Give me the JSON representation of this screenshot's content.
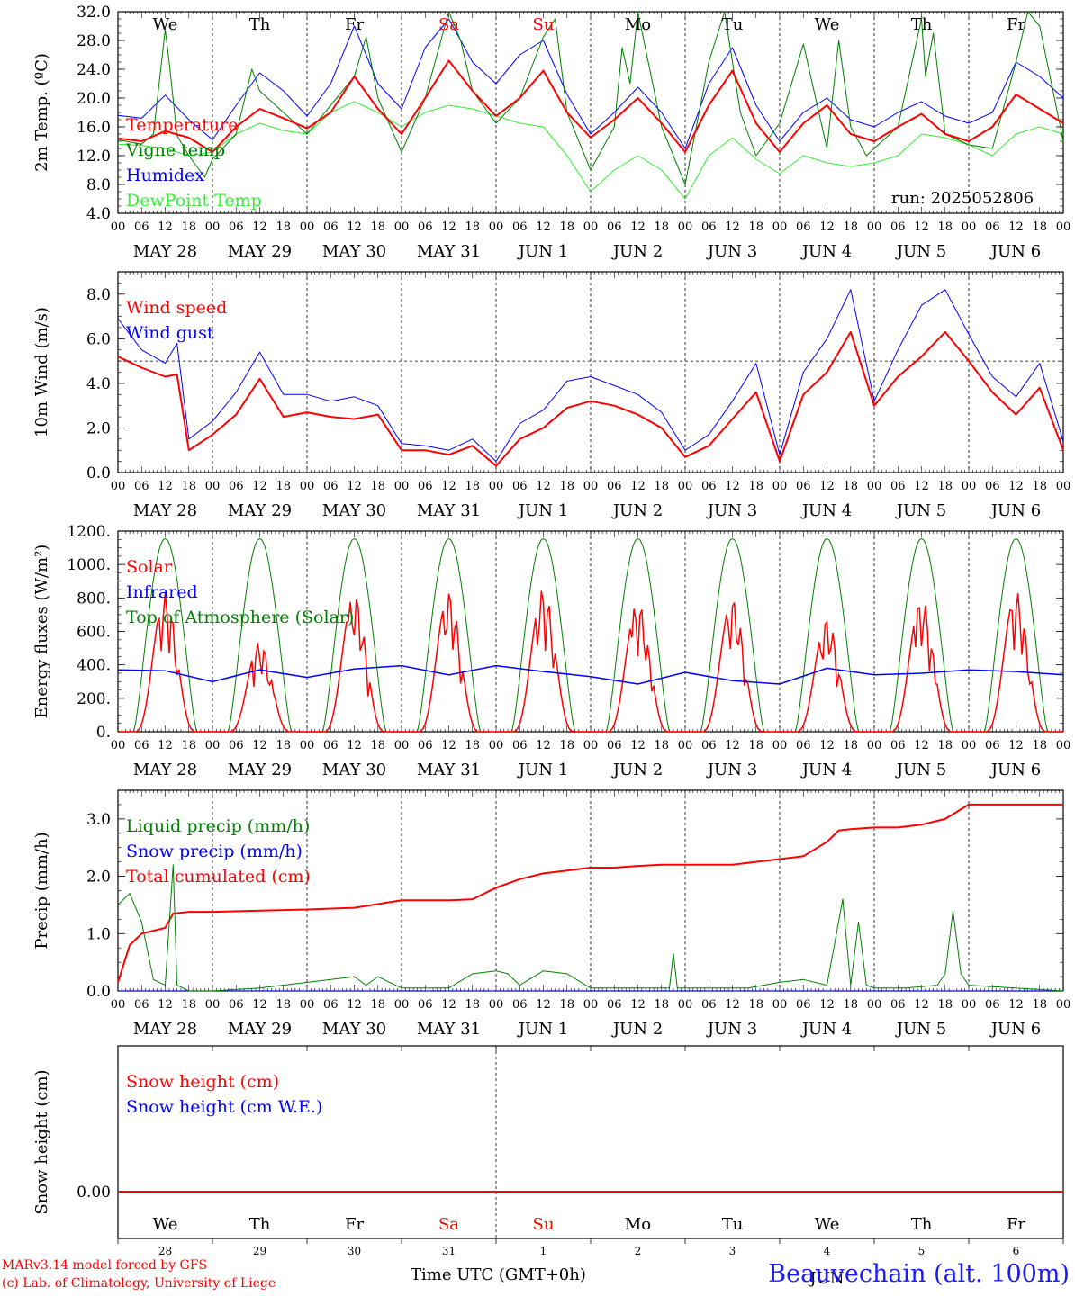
{
  "run_label": "run: 2025052806",
  "credit": {
    "line1": "MARv3.14 model forced by GFS",
    "line2": "(c) Lab. of Climatology, University of Liege"
  },
  "station": "Beauvechain (alt. 100m)",
  "x_axis_title": "Time UTC (GMT+0h)",
  "colors": {
    "red": "#ff0000",
    "darkgreen": "#008000",
    "blue": "#0000ff",
    "lightgreen": "#33ee33",
    "black": "#000000"
  },
  "days": [
    "We",
    "Th",
    "Fr",
    "Sa",
    "Su",
    "Mo",
    "Tu",
    "We",
    "Th",
    "Fr"
  ],
  "weekend_days": [
    "Sa",
    "Su"
  ],
  "dates": [
    "MAY 28",
    "MAY 29",
    "MAY 30",
    "MAY 31",
    "JUN  1",
    "JUN  2",
    "JUN  3",
    "JUN  4",
    "JUN  5",
    "JUN  6"
  ],
  "hour_ticks": [
    "00",
    "06",
    "12",
    "18"
  ],
  "bottom_day_numbers": [
    "28",
    "29",
    "30",
    "31",
    "1",
    "2",
    "3",
    "4",
    "5",
    "6"
  ],
  "bottom_month_label": "JUN",
  "chart_data": [
    {
      "type": "line",
      "ylabel": "2m Temp. (ºC)",
      "ylim": [
        4,
        32
      ],
      "yticks": [
        "4.0",
        "8.0",
        "12.0",
        "16.0",
        "20.0",
        "24.0",
        "28.0",
        "32.0"
      ],
      "ytick_values": [
        4,
        8,
        12,
        16,
        20,
        24,
        28,
        32
      ],
      "x_unit": "hours since MAY 28 00 UTC",
      "series": [
        {
          "name": "Temperature",
          "color": "#ff0000",
          "width": 2,
          "x": [
            0,
            6,
            12,
            18,
            24,
            30,
            36,
            42,
            48,
            54,
            60,
            66,
            72,
            78,
            84,
            90,
            96,
            102,
            108,
            114,
            120,
            126,
            132,
            138,
            144,
            150,
            156,
            162,
            168,
            174,
            180,
            186,
            192,
            198,
            204,
            210,
            216,
            222,
            228,
            234,
            240
          ],
          "y": [
            14.4,
            14,
            15.4,
            14.5,
            12.5,
            16,
            18.5,
            17.2,
            15.8,
            18,
            23,
            18.5,
            15,
            20,
            25.2,
            21,
            17.5,
            20,
            23.8,
            18,
            14.5,
            17,
            20,
            16.5,
            12.5,
            19,
            23.8,
            16.5,
            12.5,
            16.5,
            19,
            15,
            14,
            16,
            17.8,
            15,
            14,
            16,
            20.5,
            18.5,
            16.5
          ]
        },
        {
          "name": "Vigne temp",
          "color": "#008000",
          "width": 1,
          "x": [
            0,
            6,
            9,
            12,
            13,
            15,
            18,
            22,
            24,
            30,
            34,
            36,
            42,
            48,
            54,
            60,
            63,
            66,
            72,
            78,
            84,
            87,
            90,
            96,
            102,
            108,
            111,
            114,
            120,
            126,
            128,
            130,
            132,
            138,
            144,
            150,
            154,
            158,
            162,
            168,
            174,
            180,
            183,
            186,
            190,
            192,
            198,
            204,
            205,
            207,
            210,
            216,
            222,
            228,
            231,
            234,
            240
          ],
          "y": [
            14.2,
            13.6,
            15,
            29.5,
            25,
            14.8,
            12,
            9,
            11.5,
            15,
            24,
            21,
            18,
            15,
            19,
            23,
            28.5,
            20,
            12.5,
            20,
            32,
            28,
            21,
            16.5,
            20,
            28.5,
            31,
            18,
            10,
            16,
            27,
            22,
            32,
            16,
            8,
            25,
            32,
            18,
            12,
            16.5,
            27.5,
            13,
            28,
            16,
            12,
            13,
            16,
            31,
            23,
            29,
            15,
            13.5,
            13,
            25,
            32,
            30,
            14
          ]
        },
        {
          "name": "Humidex",
          "color": "#0000ff",
          "width": 1,
          "x": [
            0,
            6,
            12,
            18,
            24,
            30,
            36,
            42,
            48,
            54,
            60,
            66,
            72,
            78,
            84,
            90,
            96,
            102,
            108,
            114,
            120,
            126,
            132,
            138,
            144,
            150,
            156,
            162,
            168,
            174,
            180,
            186,
            192,
            198,
            204,
            210,
            216,
            222,
            228,
            234,
            240
          ],
          "y": [
            17.6,
            17.2,
            20.4,
            17,
            14.2,
            19,
            23.5,
            21,
            17.5,
            22,
            30,
            22,
            18.5,
            27,
            31,
            25,
            22,
            26,
            28,
            20.5,
            15,
            18,
            21.5,
            18,
            13,
            22,
            27,
            19,
            14,
            18,
            20,
            17,
            16,
            18,
            19.5,
            17.5,
            16.5,
            18,
            25,
            23,
            20
          ]
        },
        {
          "name": "DewPoint Temp",
          "color": "#33ee33",
          "width": 1,
          "x": [
            0,
            6,
            12,
            18,
            24,
            30,
            36,
            42,
            48,
            54,
            60,
            66,
            72,
            78,
            84,
            90,
            96,
            102,
            108,
            114,
            120,
            126,
            132,
            138,
            144,
            150,
            156,
            162,
            168,
            174,
            180,
            186,
            192,
            198,
            204,
            210,
            216,
            222,
            228,
            234,
            240
          ],
          "y": [
            13.6,
            13.4,
            13,
            12,
            12.5,
            15,
            16.5,
            15.5,
            15,
            18,
            19.5,
            18,
            16,
            18,
            19,
            18.5,
            17.5,
            16.5,
            16,
            12,
            7,
            10,
            12,
            10,
            6,
            12,
            14.5,
            11.5,
            9.5,
            12,
            11,
            10.5,
            11,
            12,
            15,
            14.5,
            13.5,
            12,
            15,
            16,
            15
          ]
        }
      ]
    },
    {
      "type": "line",
      "ylabel": "10m Wind (m/s)",
      "ylim": [
        0,
        9
      ],
      "yticks": [
        "0.0",
        "2.0",
        "4.0",
        "6.0",
        "8.0"
      ],
      "ytick_values": [
        0,
        2,
        4,
        6,
        8
      ],
      "reference_line": 5,
      "series": [
        {
          "name": "Wind speed",
          "color": "#ff0000",
          "width": 2,
          "x": [
            0,
            6,
            12,
            15,
            18,
            24,
            30,
            36,
            42,
            48,
            54,
            60,
            66,
            72,
            78,
            84,
            90,
            96,
            102,
            108,
            114,
            120,
            126,
            132,
            138,
            144,
            150,
            156,
            162,
            168,
            174,
            180,
            186,
            192,
            198,
            204,
            210,
            216,
            222,
            228,
            234,
            240
          ],
          "y": [
            5.2,
            4.7,
            4.3,
            4.4,
            1.0,
            1.7,
            2.6,
            4.2,
            2.5,
            2.7,
            2.5,
            2.4,
            2.6,
            1.0,
            1.0,
            0.8,
            1.2,
            0.3,
            1.5,
            2.0,
            2.9,
            3.2,
            3.0,
            2.6,
            2.0,
            0.7,
            1.2,
            2.4,
            3.6,
            0.5,
            3.5,
            4.5,
            6.3,
            3.0,
            4.3,
            5.2,
            6.3,
            5.0,
            3.6,
            2.6,
            3.8,
            1.0
          ]
        },
        {
          "name": "Wind gust",
          "color": "#0000ff",
          "width": 1,
          "x": [
            0,
            6,
            12,
            15,
            18,
            24,
            30,
            36,
            42,
            48,
            54,
            60,
            66,
            72,
            78,
            84,
            90,
            96,
            102,
            108,
            114,
            120,
            126,
            132,
            138,
            144,
            150,
            156,
            162,
            168,
            174,
            180,
            186,
            192,
            198,
            204,
            210,
            216,
            222,
            228,
            234,
            240
          ],
          "y": [
            6.9,
            5.5,
            4.9,
            5.8,
            1.5,
            2.3,
            3.6,
            5.4,
            3.5,
            3.5,
            3.2,
            3.4,
            3.0,
            1.3,
            1.2,
            1.0,
            1.5,
            0.5,
            2.2,
            2.8,
            4.1,
            4.3,
            3.9,
            3.5,
            2.7,
            1.0,
            1.7,
            3.2,
            4.9,
            0.8,
            4.5,
            6.0,
            8.2,
            3.2,
            5.5,
            7.5,
            8.2,
            6.2,
            4.3,
            3.4,
            4.9,
            1.4
          ]
        }
      ]
    },
    {
      "type": "line",
      "ylabel": "Energy fluxes (W/m²)",
      "ylim": [
        0,
        1200
      ],
      "yticks": [
        "0.",
        "200.",
        "400.",
        "600.",
        "800.",
        "1000.",
        "1200."
      ],
      "ytick_values": [
        0,
        200,
        400,
        600,
        800,
        1000,
        1200
      ],
      "toa_peak": 1155,
      "solar_peaks": [
        830,
        540,
        830,
        840,
        860,
        780,
        800,
        680,
        800,
        840
      ],
      "series": [
        {
          "name": "Solar",
          "color": "#ff0000",
          "width": 1.5
        },
        {
          "name": "Infrared",
          "color": "#0000ff",
          "width": 1.5,
          "x": [
            0,
            12,
            24,
            36,
            48,
            60,
            72,
            84,
            96,
            108,
            120,
            132,
            144,
            156,
            168,
            180,
            192,
            204,
            216,
            228,
            240
          ],
          "y": [
            370,
            365,
            300,
            370,
            325,
            375,
            395,
            340,
            395,
            360,
            330,
            285,
            355,
            305,
            285,
            380,
            340,
            350,
            370,
            360,
            340
          ]
        },
        {
          "name": "Top of Atmosphere (Solar)",
          "color": "#008000",
          "width": 1
        }
      ]
    },
    {
      "type": "line",
      "ylabel": "Precip (mm/h)",
      "ylim": [
        0,
        3.5
      ],
      "yticks": [
        "0.0",
        "1.0",
        "2.0",
        "3.0"
      ],
      "ytick_values": [
        0,
        1,
        2,
        3
      ],
      "series": [
        {
          "name": "Liquid precip (mm/h)",
          "color": "#008000",
          "width": 1,
          "x": [
            0,
            3,
            6,
            9,
            12,
            14,
            15,
            18,
            24,
            36,
            60,
            63,
            66,
            72,
            84,
            90,
            96,
            99,
            102,
            108,
            114,
            120,
            140,
            141,
            142,
            150,
            160,
            168,
            174,
            180,
            184,
            186,
            188,
            190,
            192,
            200,
            208,
            210,
            212,
            214,
            216,
            240
          ],
          "y": [
            1.5,
            1.7,
            1.2,
            0.2,
            0.1,
            2.2,
            0.1,
            0.0,
            0.0,
            0.05,
            0.25,
            0.1,
            0.25,
            0.05,
            0.05,
            0.3,
            0.35,
            0.3,
            0.1,
            0.35,
            0.3,
            0.05,
            0.05,
            0.65,
            0.05,
            0.05,
            0.05,
            0.15,
            0.2,
            0.1,
            1.6,
            0.1,
            1.2,
            0.1,
            0.05,
            0.05,
            0.1,
            0.3,
            1.4,
            0.3,
            0.1,
            0.0
          ]
        },
        {
          "name": "Snow precip (mm/h)",
          "color": "#0000ff",
          "width": 1,
          "x": [
            0,
            240
          ],
          "y": [
            0,
            0
          ]
        },
        {
          "name": "Total cumulated (cm)",
          "color": "#ff0000",
          "width": 2,
          "x": [
            0,
            3,
            6,
            12,
            14,
            18,
            24,
            48,
            60,
            72,
            84,
            90,
            96,
            102,
            108,
            114,
            120,
            126,
            132,
            138,
            144,
            156,
            168,
            174,
            180,
            183,
            186,
            192,
            198,
            204,
            210,
            216,
            222,
            228,
            240
          ],
          "y": [
            0.15,
            0.8,
            1.0,
            1.1,
            1.35,
            1.38,
            1.38,
            1.42,
            1.45,
            1.58,
            1.58,
            1.6,
            1.8,
            1.95,
            2.05,
            2.1,
            2.15,
            2.15,
            2.18,
            2.2,
            2.2,
            2.2,
            2.3,
            2.35,
            2.6,
            2.8,
            2.82,
            2.85,
            2.85,
            2.9,
            3.0,
            3.25,
            3.25,
            3.25,
            3.25
          ]
        }
      ]
    },
    {
      "type": "line",
      "ylabel": "Snow height (cm)",
      "yticks": [
        "0.00"
      ],
      "series": [
        {
          "name": "Snow height (cm)",
          "color": "#ff0000",
          "width": 2,
          "x": [
            0,
            240
          ],
          "y": [
            0,
            0
          ]
        },
        {
          "name": "Snow height (cm W.E.)",
          "color": "#0000ff",
          "width": 1,
          "x": [
            0,
            240
          ],
          "y": [
            0,
            0
          ]
        }
      ]
    }
  ]
}
